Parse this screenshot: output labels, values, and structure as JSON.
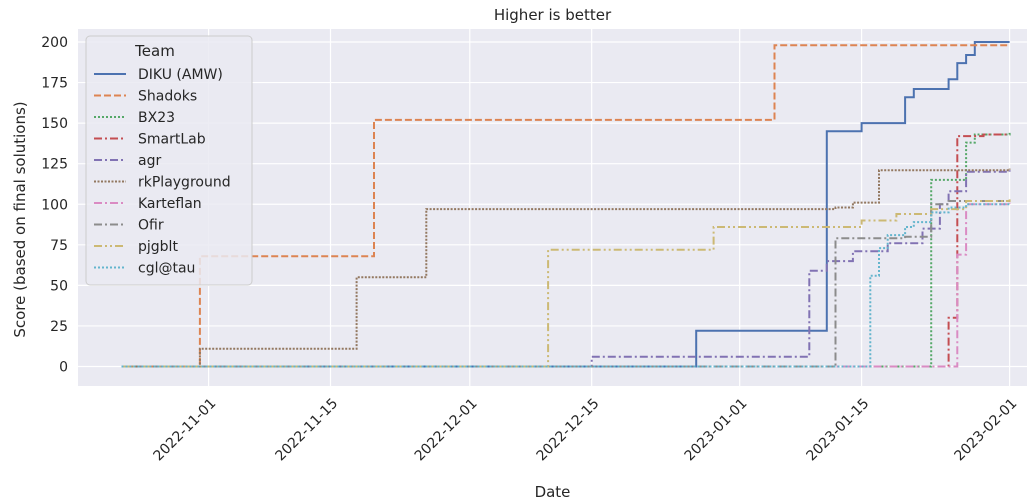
{
  "chart_data": {
    "type": "line",
    "drawstyle": "steps-post",
    "title": "Higher is better",
    "xlabel": "Date",
    "ylabel": "Score (based on final solutions)",
    "xlim": [
      "2022-10-17",
      "2023-02-03"
    ],
    "ylim": [
      -12,
      208
    ],
    "xticks": [
      "2022-11-01",
      "2022-11-15",
      "2022-12-01",
      "2022-12-15",
      "2023-01-01",
      "2023-01-15",
      "2023-02-01"
    ],
    "yticks": [
      0,
      25,
      50,
      75,
      100,
      125,
      150,
      175,
      200
    ],
    "grid": true,
    "legend": {
      "title": "Team",
      "placement": "upper-left"
    },
    "series": [
      {
        "name": "DIKU (AMW)",
        "color": "#4c72b0",
        "dash": "solid",
        "points": [
          [
            "2022-10-22",
            0
          ],
          [
            "2022-12-27",
            22
          ],
          [
            "2023-01-11",
            145
          ],
          [
            "2023-01-15",
            150
          ],
          [
            "2023-01-20",
            166
          ],
          [
            "2023-01-21",
            171
          ],
          [
            "2023-01-25",
            177
          ],
          [
            "2023-01-26",
            187
          ],
          [
            "2023-01-27",
            192
          ],
          [
            "2023-01-28",
            200
          ],
          [
            "2023-02-01",
            200
          ]
        ]
      },
      {
        "name": "Shadoks",
        "color": "#dd8452",
        "dash": "dashed",
        "points": [
          [
            "2022-10-22",
            0
          ],
          [
            "2022-10-31",
            68
          ],
          [
            "2022-11-20",
            152
          ],
          [
            "2023-01-05",
            198
          ],
          [
            "2023-02-01",
            198
          ]
        ]
      },
      {
        "name": "BX23",
        "color": "#55a868",
        "dash": "dotted",
        "points": [
          [
            "2022-10-22",
            0
          ],
          [
            "2023-01-23",
            115
          ],
          [
            "2023-01-27",
            138
          ],
          [
            "2023-01-28",
            143
          ],
          [
            "2023-02-01",
            144
          ]
        ]
      },
      {
        "name": "SmartLab",
        "color": "#c44e52",
        "dash": "dashdot",
        "points": [
          [
            "2022-10-22",
            0
          ],
          [
            "2023-01-25",
            30
          ],
          [
            "2023-01-26",
            142
          ],
          [
            "2023-01-29",
            143
          ],
          [
            "2023-02-01",
            143
          ]
        ]
      },
      {
        "name": "agr",
        "color": "#8172b3",
        "dash": "dashdot",
        "points": [
          [
            "2022-10-22",
            0
          ],
          [
            "2022-12-15",
            6
          ],
          [
            "2023-01-09",
            59
          ],
          [
            "2023-01-11",
            65
          ],
          [
            "2023-01-14",
            71
          ],
          [
            "2023-01-18",
            76
          ],
          [
            "2023-01-22",
            85
          ],
          [
            "2023-01-24",
            100
          ],
          [
            "2023-01-25",
            108
          ],
          [
            "2023-01-27",
            120
          ],
          [
            "2023-02-01",
            121
          ]
        ]
      },
      {
        "name": "rkPlayground",
        "color": "#937860",
        "dash": "densedot",
        "points": [
          [
            "2022-10-22",
            0
          ],
          [
            "2022-10-31",
            11
          ],
          [
            "2022-11-18",
            55
          ],
          [
            "2022-11-26",
            97
          ],
          [
            "2023-01-12",
            98
          ],
          [
            "2023-01-14",
            101
          ],
          [
            "2023-01-17",
            121
          ],
          [
            "2023-02-01",
            122
          ]
        ]
      },
      {
        "name": "Karteflan",
        "color": "#da8bc3",
        "dash": "dashdot",
        "points": [
          [
            "2022-10-22",
            0
          ],
          [
            "2023-01-26",
            69
          ],
          [
            "2023-01-27",
            100
          ],
          [
            "2023-02-01",
            101
          ]
        ]
      },
      {
        "name": "Ofir",
        "color": "#8c8c8c",
        "dash": "dashdot",
        "points": [
          [
            "2022-10-22",
            0
          ],
          [
            "2023-01-12",
            79
          ],
          [
            "2023-01-20",
            80
          ],
          [
            "2023-01-23",
            100
          ],
          [
            "2023-01-25",
            102
          ],
          [
            "2023-02-01",
            103
          ]
        ]
      },
      {
        "name": "pjgblt",
        "color": "#ccb974",
        "dash": "dashdotdot",
        "points": [
          [
            "2022-10-22",
            0
          ],
          [
            "2022-12-10",
            72
          ],
          [
            "2022-12-29",
            86
          ],
          [
            "2023-01-15",
            90
          ],
          [
            "2023-01-19",
            94
          ],
          [
            "2023-01-23",
            97
          ],
          [
            "2023-01-27",
            102
          ],
          [
            "2023-02-01",
            103
          ]
        ]
      },
      {
        "name": "cgl@tau",
        "color": "#64b5cd",
        "dash": "dotted",
        "points": [
          [
            "2022-10-22",
            0
          ],
          [
            "2023-01-16",
            56
          ],
          [
            "2023-01-17",
            73
          ],
          [
            "2023-01-18",
            81
          ],
          [
            "2023-01-20",
            86
          ],
          [
            "2023-01-21",
            89
          ],
          [
            "2023-01-23",
            95
          ],
          [
            "2023-01-25",
            98
          ],
          [
            "2023-01-27",
            100
          ],
          [
            "2023-02-01",
            100
          ]
        ]
      }
    ]
  }
}
